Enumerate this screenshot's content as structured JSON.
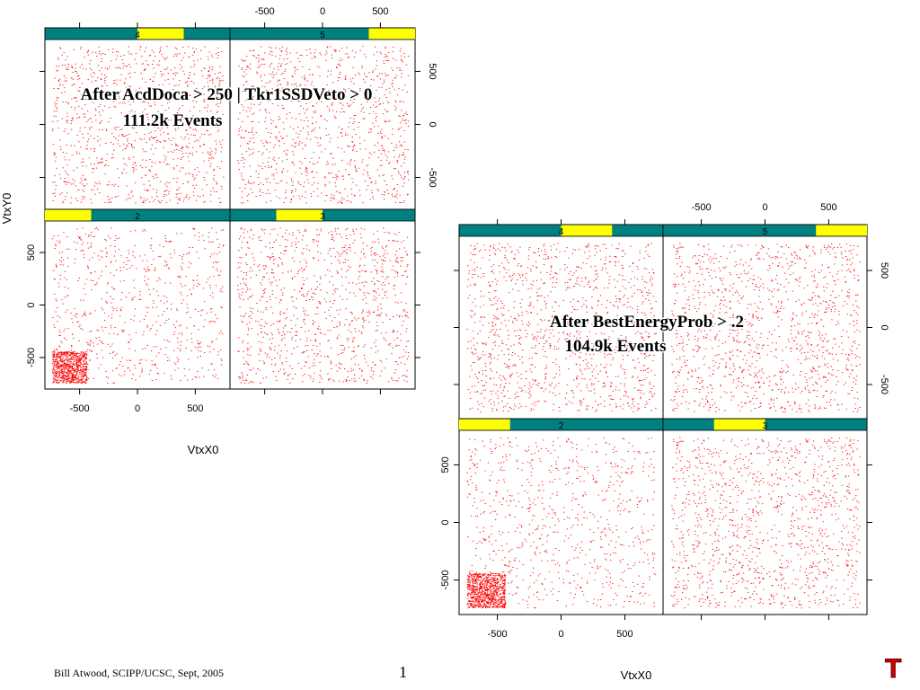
{
  "chart_data": [
    {
      "type": "scatter",
      "xlabel": "VtxX0",
      "ylabel": "VtxY0",
      "xlim": [
        -800,
        800
      ],
      "ylim": [
        -800,
        800
      ],
      "xticks": [
        "-500",
        "0",
        "500"
      ],
      "yticks": [
        "-500",
        "0",
        "500"
      ],
      "grid": false,
      "marker_color": "#ff0000",
      "panels": [
        {
          "label": "4",
          "level_range": [
            0.5,
            0.75
          ]
        },
        {
          "label": "5",
          "level_range": [
            0.75,
            1.0
          ]
        },
        {
          "label": "2",
          "level_range": [
            0.0,
            0.25
          ]
        },
        {
          "label": "3",
          "level_range": [
            0.25,
            0.5
          ]
        }
      ],
      "annotation": [
        "After AcdDoca > 250 | Tkr1SSDVeto > 0",
        "111.2k Events"
      ],
      "x_data_range": [
        -740,
        740
      ],
      "y_data_range": [
        -740,
        740
      ],
      "events": "111.2k"
    },
    {
      "type": "scatter",
      "xlabel": "VtxX0",
      "ylabel": "",
      "xlim": [
        -800,
        800
      ],
      "ylim": [
        -800,
        800
      ],
      "xticks": [
        "-500",
        "0",
        "500"
      ],
      "yticks": [
        "-500",
        "0",
        "500"
      ],
      "grid": false,
      "marker_color": "#ff0000",
      "panels": [
        {
          "label": "4",
          "level_range": [
            0.5,
            0.75
          ]
        },
        {
          "label": "5",
          "level_range": [
            0.75,
            1.0
          ]
        },
        {
          "label": "2",
          "level_range": [
            0.0,
            0.25
          ]
        },
        {
          "label": "3",
          "level_range": [
            0.25,
            0.5
          ]
        }
      ],
      "annotation": [
        "After BestEnergyProb > .2",
        "104.9k Events"
      ],
      "x_data_range": [
        -740,
        740
      ],
      "y_data_range": [
        -740,
        740
      ],
      "events": "104.9k"
    }
  ],
  "footer": {
    "author": "Bill Atwood,  SCIPP/UCSC, Sept, 2005",
    "page_number": "1",
    "logo_letter": "T"
  },
  "colors": {
    "strip_bg": "#008080",
    "strip_indicator": "#ffff00",
    "points": "#ff0000",
    "logo": "#cc0000"
  }
}
